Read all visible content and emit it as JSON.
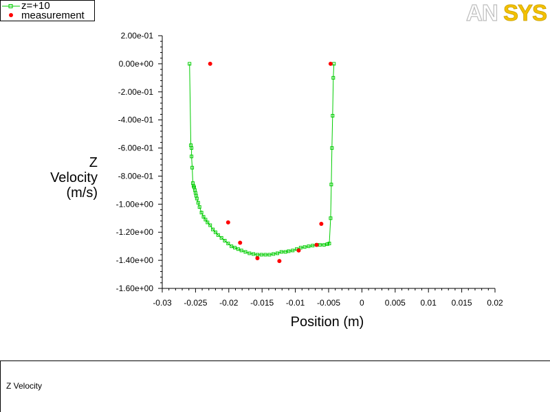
{
  "legend": {
    "items": [
      {
        "label": "z=+10",
        "color": "#00cc00",
        "marker": "square-line"
      },
      {
        "label": "measurement",
        "color": "#ff0000",
        "marker": "dot"
      }
    ]
  },
  "logo": {
    "text": "ANSYS"
  },
  "caption": "Z Velocity",
  "chart_data": {
    "type": "scatter",
    "xlabel": "Position (m)",
    "ylabel": [
      "Z",
      "Velocity",
      "(m/s)"
    ],
    "xlim": [
      -0.03,
      0.02
    ],
    "ylim": [
      -1.6,
      0.2
    ],
    "xticks": [
      "-0.03",
      "-0.025",
      "-0.02",
      "-0.015",
      "-0.01",
      "-0.005",
      "0",
      "0.005",
      "0.01",
      "0.015",
      "0.02"
    ],
    "yticks": [
      "2.00e-01",
      "0.00e+00",
      "-2.00e-01",
      "-4.00e-01",
      "-6.00e-01",
      "-8.00e-01",
      "-1.00e+00",
      "-1.20e+00",
      "-1.40e+00",
      "-1.60e+00"
    ],
    "grid": false,
    "legend_position": "top-left",
    "series": [
      {
        "name": "z=+10",
        "color": "#00cc00",
        "style": "line-square",
        "x": [
          -0.0259,
          -0.0257,
          -0.0256,
          -0.0256,
          -0.0255,
          -0.0254,
          -0.0253,
          -0.0252,
          -0.0251,
          -0.025,
          -0.0249,
          -0.0248,
          -0.0246,
          -0.0244,
          -0.0241,
          -0.0238,
          -0.0235,
          -0.0232,
          -0.0228,
          -0.0224,
          -0.022,
          -0.0216,
          -0.0211,
          -0.0206,
          -0.0201,
          -0.0196,
          -0.0191,
          -0.0186,
          -0.0181,
          -0.0175,
          -0.0169,
          -0.0163,
          -0.0157,
          -0.0151,
          -0.0145,
          -0.0139,
          -0.0133,
          -0.0127,
          -0.0121,
          -0.0115,
          -0.011,
          -0.0104,
          -0.0098,
          -0.0092,
          -0.0086,
          -0.008,
          -0.0074,
          -0.0068,
          -0.0063,
          -0.0057,
          -0.0052,
          -0.0049,
          -0.0047,
          -0.0046,
          -0.0045,
          -0.0044,
          -0.0043,
          -0.0042
        ],
        "y": [
          0.0,
          -0.58,
          -0.6,
          -0.66,
          -0.74,
          -0.85,
          -0.87,
          -0.88,
          -0.9,
          -0.92,
          -0.94,
          -0.96,
          -0.99,
          -1.02,
          -1.06,
          -1.09,
          -1.11,
          -1.13,
          -1.15,
          -1.18,
          -1.2,
          -1.22,
          -1.24,
          -1.26,
          -1.28,
          -1.3,
          -1.31,
          -1.32,
          -1.33,
          -1.34,
          -1.35,
          -1.355,
          -1.36,
          -1.36,
          -1.36,
          -1.36,
          -1.355,
          -1.35,
          -1.34,
          -1.34,
          -1.335,
          -1.33,
          -1.32,
          -1.31,
          -1.305,
          -1.3,
          -1.295,
          -1.29,
          -1.29,
          -1.29,
          -1.285,
          -1.28,
          -1.1,
          -0.86,
          -0.6,
          -0.37,
          -0.1,
          0.0
        ]
      },
      {
        "name": "measurement",
        "color": "#ff0000",
        "style": "dot",
        "x": [
          -0.0228,
          -0.0201,
          -0.0183,
          -0.0157,
          -0.0124,
          -0.0095,
          -0.0068,
          -0.0061,
          -0.0047
        ],
        "y": [
          0.0,
          -1.13,
          -1.275,
          -1.385,
          -1.405,
          -1.33,
          -1.29,
          -1.14,
          0.0
        ]
      }
    ]
  }
}
